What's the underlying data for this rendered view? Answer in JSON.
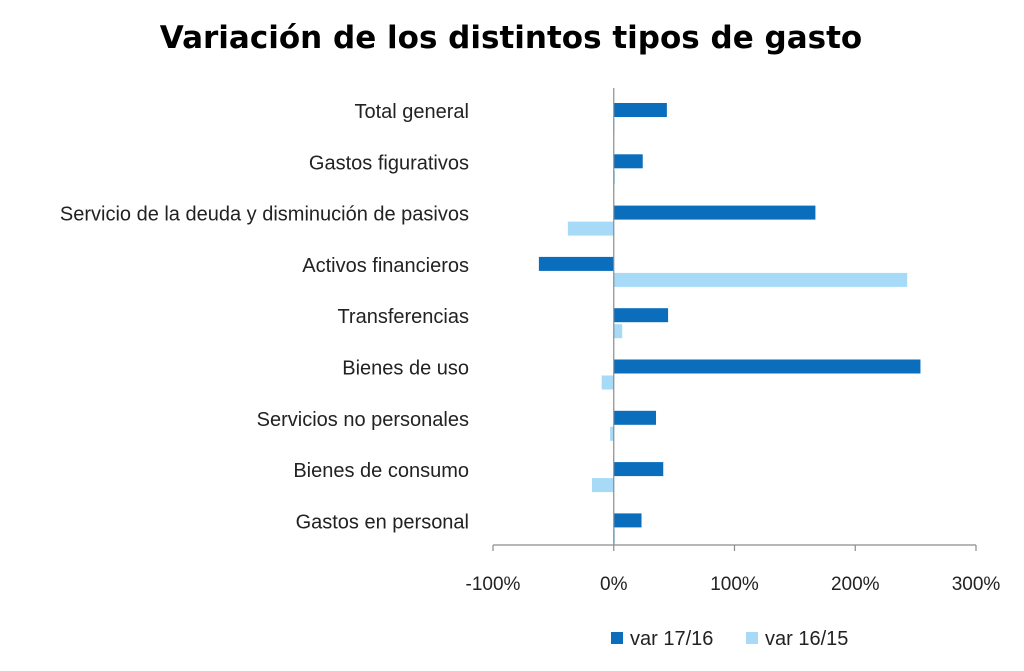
{
  "chart_data": {
    "type": "bar",
    "orientation": "horizontal",
    "title": "Variación de los distintos tipos de gasto",
    "xlabel": "",
    "ylabel": "",
    "categories": [
      "Total general",
      "Gastos figurativos",
      "Servicio de la deuda  y disminución  de pasivos",
      "Activos financieros",
      "Transferencias",
      "Bienes de uso",
      "Servicios no personales",
      "Bienes de consumo",
      "Gastos en personal"
    ],
    "series": [
      {
        "name": "var 17/16",
        "color": "#0a6ebd",
        "values": [
          44,
          24,
          167,
          -62,
          45,
          254,
          35,
          41,
          23
        ]
      },
      {
        "name": "var 16/15",
        "color": "#a6daf7",
        "values": [
          0,
          1,
          -38,
          243,
          7,
          -10,
          -3,
          -18,
          1
        ]
      }
    ],
    "xlim": [
      -100,
      300
    ],
    "xticks": [
      {
        "value": -100,
        "label": "-100%"
      },
      {
        "value": 0,
        "label": "0%"
      },
      {
        "value": 100,
        "label": "100%"
      },
      {
        "value": 200,
        "label": "200%"
      },
      {
        "value": 300,
        "label": "300%"
      }
    ],
    "grid": false,
    "legend_position": "bottom"
  }
}
